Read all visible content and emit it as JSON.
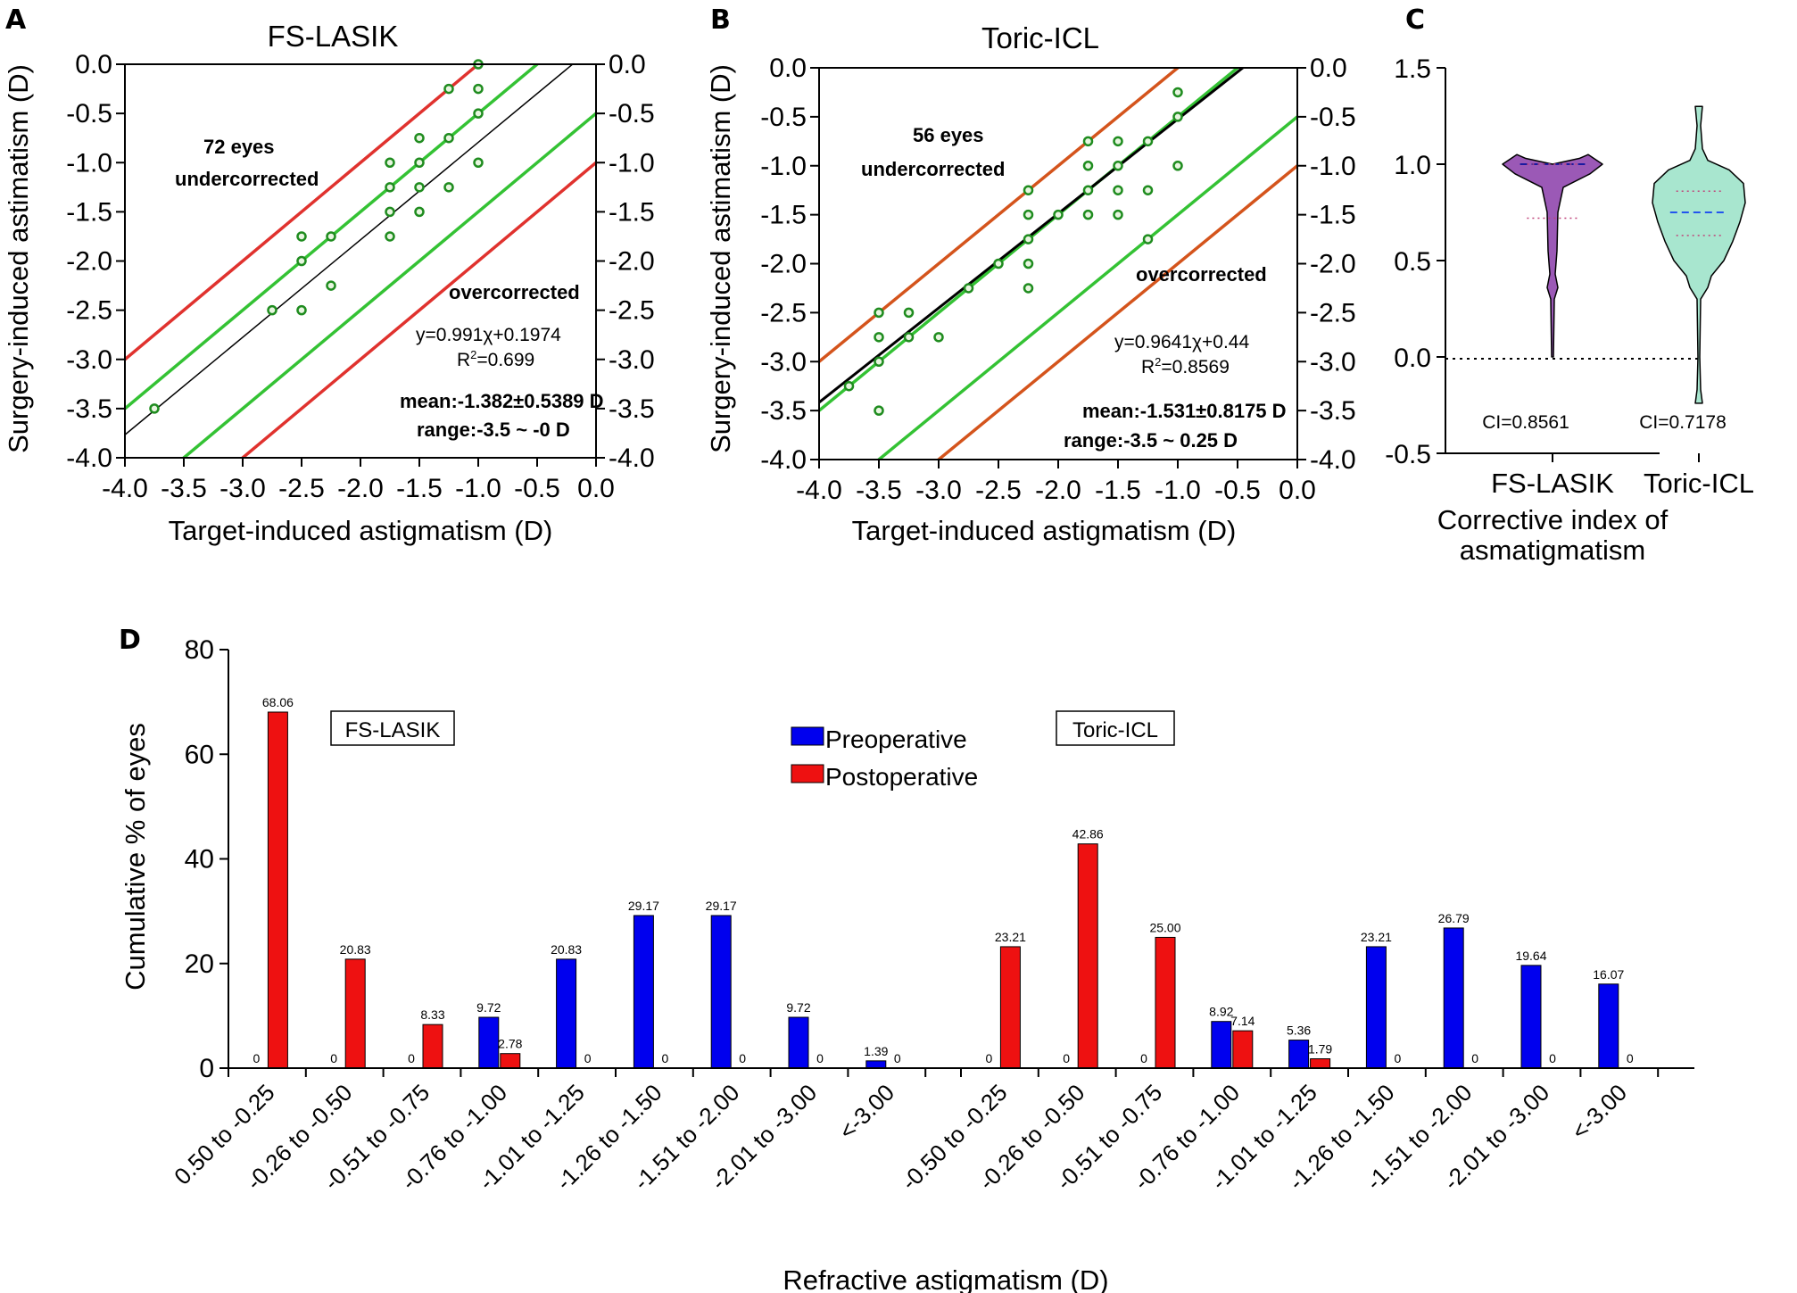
{
  "chart_data": [
    {
      "panel": "A",
      "type": "scatter",
      "title": "FS-LASIK",
      "xlabel": "Target-induced astigmatism (D)",
      "ylabel": "Surgery-induced astimatism (D)",
      "xlim": [
        -4.0,
        0.0
      ],
      "ylim": [
        -4.0,
        0.0
      ],
      "x_ticks": [
        "-4.0",
        "-3.5",
        "-3.0",
        "-2.5",
        "-2.0",
        "-1.5",
        "-1.0",
        "-0.5",
        "0.0"
      ],
      "y_ticks": [
        "0.0",
        "-0.5",
        "-1.0",
        "-1.5",
        "-2.0",
        "-2.5",
        "-3.0",
        "-3.5",
        "-4.0"
      ],
      "annotations": {
        "count": "72 eyes",
        "under": "undercorrected",
        "over": "overcorrected",
        "equation": "y=0.991χ+0.1974",
        "r2_prefix": "R",
        "r2_sup": "2",
        "r2_value": "=0.699",
        "mean": "mean:-1.382±0.5389 D",
        "range": "range:-3.5 ~ -0 D"
      },
      "fit": {
        "slope": 0.991,
        "intercept": 0.1974
      },
      "ref_lines": [
        {
          "offset": 1.0,
          "color": "#e0322e"
        },
        {
          "offset": 0.5,
          "color": "#34c234"
        },
        {
          "offset": -0.5,
          "color": "#34c234"
        },
        {
          "offset": -1.0,
          "color": "#e0322e"
        }
      ],
      "points": [
        [
          -1.0,
          0.0
        ],
        [
          -1.25,
          -0.25
        ],
        [
          -1.0,
          -0.25
        ],
        [
          -1.0,
          -0.5
        ],
        [
          -1.25,
          -0.75
        ],
        [
          -1.5,
          -0.75
        ],
        [
          -1.75,
          -1.0
        ],
        [
          -1.5,
          -1.0
        ],
        [
          -1.0,
          -1.0
        ],
        [
          -1.75,
          -1.25
        ],
        [
          -1.5,
          -1.25
        ],
        [
          -1.25,
          -1.25
        ],
        [
          -1.75,
          -1.5
        ],
        [
          -1.5,
          -1.5
        ],
        [
          -1.75,
          -1.75
        ],
        [
          -2.5,
          -1.75
        ],
        [
          -2.25,
          -1.75
        ],
        [
          -2.5,
          -2.0
        ],
        [
          -2.25,
          -2.25
        ],
        [
          -2.75,
          -2.5
        ],
        [
          -2.5,
          -2.5
        ],
        [
          -3.75,
          -3.5
        ]
      ]
    },
    {
      "panel": "B",
      "type": "scatter",
      "title": "Toric-ICL",
      "xlabel": "Target-induced astigmatism (D)",
      "ylabel": "Surgery-induced astimatism (D)",
      "xlim": [
        -4.0,
        0.0
      ],
      "ylim": [
        -4.0,
        0.0
      ],
      "x_ticks": [
        "-4.0",
        "-3.5",
        "-3.0",
        "-2.5",
        "-2.0",
        "-1.5",
        "-1.0",
        "-0.5",
        "0.0"
      ],
      "y_ticks": [
        "0.0",
        "-0.5",
        "-1.0",
        "-1.5",
        "-2.0",
        "-2.5",
        "-3.0",
        "-3.5",
        "-4.0"
      ],
      "annotations": {
        "count": "56 eyes",
        "under": "undercorrected",
        "over": "overcorrected",
        "equation": "y=0.9641χ+0.44",
        "r2_prefix": "R",
        "r2_sup": "2",
        "r2_value": "=0.8569",
        "mean": "mean:-1.531±0.8175 D",
        "range": "range:-3.5 ~ 0.25 D"
      },
      "fit": {
        "slope": 0.9641,
        "intercept": 0.44
      },
      "ref_lines": [
        {
          "offset": 1.0,
          "color": "#d4541c"
        },
        {
          "offset": 0.5,
          "color": "#34c234"
        },
        {
          "offset": -0.5,
          "color": "#34c234"
        },
        {
          "offset": -1.0,
          "color": "#d4541c"
        }
      ],
      "points": [
        [
          -1.0,
          -0.25
        ],
        [
          -1.0,
          -0.5
        ],
        [
          -1.25,
          -0.75
        ],
        [
          -1.5,
          -0.75
        ],
        [
          -1.75,
          -0.75
        ],
        [
          -1.0,
          -1.0
        ],
        [
          -1.5,
          -1.0
        ],
        [
          -1.75,
          -1.0
        ],
        [
          -1.25,
          -1.25
        ],
        [
          -1.5,
          -1.25
        ],
        [
          -1.75,
          -1.25
        ],
        [
          -2.25,
          -1.25
        ],
        [
          -1.5,
          -1.5
        ],
        [
          -1.75,
          -1.5
        ],
        [
          -2.0,
          -1.5
        ],
        [
          -2.25,
          -1.5
        ],
        [
          -1.25,
          -1.75
        ],
        [
          -2.25,
          -1.75
        ],
        [
          -2.25,
          -2.0
        ],
        [
          -2.5,
          -2.0
        ],
        [
          -2.25,
          -2.25
        ],
        [
          -2.75,
          -2.25
        ],
        [
          -3.5,
          -2.5
        ],
        [
          -3.25,
          -2.5
        ],
        [
          -3.5,
          -2.75
        ],
        [
          -3.25,
          -2.75
        ],
        [
          -3.0,
          -2.75
        ],
        [
          -3.5,
          -3.0
        ],
        [
          -3.75,
          -3.25
        ],
        [
          -3.5,
          -3.5
        ]
      ]
    },
    {
      "panel": "C",
      "type": "violin",
      "xlabel_lines": [
        "Corrective index of",
        "asmatigmatism"
      ],
      "ylim": [
        -0.5,
        1.5
      ],
      "y_ticks": [
        "1.5",
        "1.0",
        "0.5",
        "0.0",
        "-0.5"
      ],
      "categories": [
        "FS-LASIK",
        "Toric-ICL"
      ],
      "ci_labels": [
        "CI=0.8561",
        "CI=0.7178"
      ],
      "fills": [
        "#9b59b6",
        "#a8e6cf"
      ],
      "medians": [
        1.0,
        0.75
      ],
      "quartiles": [
        [
          0.72,
          1.0
        ],
        [
          0.63,
          0.86
        ]
      ]
    },
    {
      "panel": "D",
      "type": "bar",
      "ylabel": "Cumulative % of eyes",
      "xlabel": "Refractive astigmatism (D)",
      "ylim": [
        0,
        80
      ],
      "y_ticks": [
        "80",
        "60",
        "40",
        "20",
        "0"
      ],
      "legend_position": "top-center",
      "box_labels": [
        "FS-LASIK",
        "Toric-ICL"
      ],
      "series": [
        {
          "name": "Preoperative",
          "color": "#0000ee"
        },
        {
          "name": "Postoperative",
          "color": "#ee1111"
        }
      ],
      "groups": [
        {
          "name": "FS-LASIK",
          "categories": [
            "0.50 to -0.25",
            "-0.26 to -0.50",
            "-0.51 to -0.75",
            "-0.76 to -1.00",
            "-1.01 to -1.25",
            "-1.26 to -1.50",
            "-1.51 to -2.00",
            "-2.01 to -3.00",
            "<-3.00"
          ],
          "preoperative": [
            0,
            0,
            0,
            9.72,
            20.83,
            29.17,
            29.17,
            9.72,
            1.39
          ],
          "postoperative": [
            68.06,
            20.83,
            8.33,
            2.78,
            0,
            0,
            0,
            0,
            0
          ],
          "pre_labels": [
            "0",
            "0",
            "0",
            "9.72",
            "20.83",
            "29.17",
            "29.17",
            "9.72",
            "1.39"
          ],
          "post_labels": [
            "68.06",
            "20.83",
            "8.33",
            "2.78",
            "0",
            "0",
            "0",
            "0",
            "0"
          ]
        },
        {
          "name": "Toric-ICL",
          "categories": [
            "-0.50 to -0.25",
            "-0.26 to -0.50",
            "-0.51 to -0.75",
            "-0.76 to -1.00",
            "-1.01 to -1.25",
            "-1.26 to -1.50",
            "-1.51 to -2.00",
            "-2.01 to -3.00",
            "<-3.00"
          ],
          "preoperative": [
            0,
            0,
            0,
            8.92,
            5.36,
            23.21,
            26.79,
            19.64,
            16.07
          ],
          "postoperative": [
            23.21,
            42.86,
            25.0,
            7.14,
            1.79,
            0,
            0,
            0,
            0
          ],
          "pre_labels": [
            "0",
            "0",
            "0",
            "8.92",
            "5.36",
            "23.21",
            "26.79",
            "19.64",
            "16.07"
          ],
          "post_labels": [
            "23.21",
            "42.86",
            "25.00",
            "7.14",
            "1.79",
            "0",
            "0",
            "0",
            "0"
          ]
        }
      ]
    }
  ]
}
